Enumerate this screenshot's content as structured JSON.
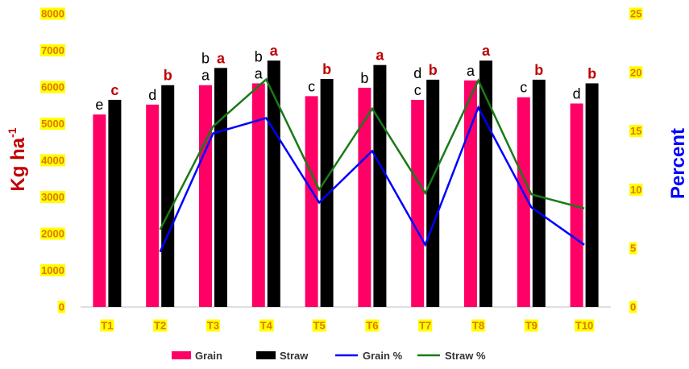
{
  "chart_data": {
    "type": "bar",
    "categories": [
      "T1",
      "T2",
      "T3",
      "T4",
      "T5",
      "T6",
      "T7",
      "T8",
      "T9",
      "T10"
    ],
    "bar_series": [
      {
        "name": "Grain",
        "color": "#ff0066",
        "values": [
          5250,
          5520,
          6050,
          6100,
          5750,
          5980,
          5650,
          6180,
          5720,
          5550
        ],
        "labels": [
          "",
          "d",
          "a",
          "a",
          "c",
          "b",
          "c",
          "a",
          "c",
          "d"
        ],
        "label_color": "#000000"
      },
      {
        "name": "Straw",
        "color": "#000000",
        "values": [
          5650,
          6050,
          6520,
          6720,
          6220,
          6600,
          6200,
          6720,
          6200,
          6100
        ],
        "labels": [
          "c",
          "b",
          "a",
          "a",
          "b",
          "a",
          "b",
          "a",
          "b",
          "b"
        ],
        "label_color": "#c00000"
      }
    ],
    "extra_labels": [
      {
        "category": "T1",
        "series": "Grain",
        "text": "e",
        "color": "#000000"
      },
      {
        "category": "T3",
        "series": "Grain",
        "text": "b",
        "color": "#000000",
        "stack": 1
      },
      {
        "category": "T4",
        "series": "Grain",
        "text": "b",
        "color": "#000000",
        "stack": 1
      },
      {
        "category": "T7",
        "series": "Grain",
        "text": "d",
        "color": "#000000",
        "stack": 1
      }
    ],
    "line_series": [
      {
        "name": "Grain %",
        "color": "#0000ff",
        "axis": "right",
        "values": [
          null,
          4.7,
          14.8,
          16.1,
          8.9,
          13.3,
          5.3,
          17.0,
          8.5,
          5.3
        ]
      },
      {
        "name": "Straw %",
        "color": "#1a7a1a",
        "axis": "right",
        "values": [
          null,
          6.6,
          15.4,
          19.4,
          10.0,
          16.9,
          9.7,
          19.3,
          9.6,
          8.4
        ]
      }
    ],
    "ylabel": "Kg ha",
    "ylabel_superscript": "-1",
    "y2label": "Percent",
    "ylim": [
      0,
      8000
    ],
    "yticks": [
      0,
      1000,
      2000,
      3000,
      4000,
      5000,
      6000,
      7000,
      8000
    ],
    "y2lim": [
      0,
      25
    ],
    "y2ticks": [
      0,
      5,
      10,
      15,
      20,
      25
    ],
    "tick_label_background": "#ffff00",
    "tick_label_color": "#e07800",
    "ylabel_color": "#c00000",
    "y2label_color": "#0000ff",
    "grid": false,
    "legend_position": "bottom"
  }
}
